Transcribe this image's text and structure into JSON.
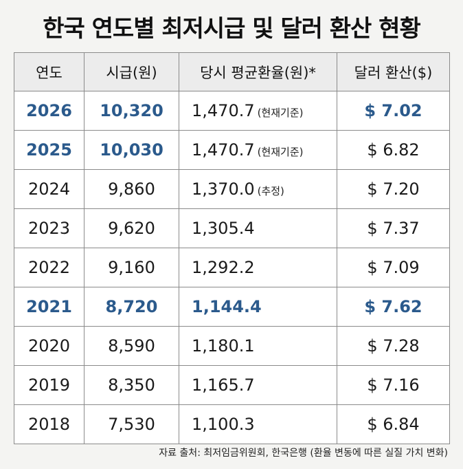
{
  "title": "한국 연도별 최저시급 및 달러 환산 현황",
  "table": {
    "headers": [
      "연도",
      "시급(원)",
      "당시 평균환율(원)*",
      "달러 환산($)"
    ],
    "rows": [
      {
        "year": "2026",
        "wage": "10,320",
        "rate": "1,470.7",
        "note": "(현재기준)",
        "usd": "$ 7.02"
      },
      {
        "year": "2025",
        "wage": "10,030",
        "rate": "1,470.7",
        "note": "(현재기준)",
        "usd": "$ 6.82"
      },
      {
        "year": "2024",
        "wage": "9,860",
        "rate": "1,370.0",
        "note": "(추정)",
        "usd": "$ 7.20"
      },
      {
        "year": "2023",
        "wage": "9,620",
        "rate": "1,305.4",
        "note": "",
        "usd": "$ 7.37"
      },
      {
        "year": "2022",
        "wage": "9,160",
        "rate": "1,292.2",
        "note": "",
        "usd": "$ 7.09"
      },
      {
        "year": "2021",
        "wage": "8,720",
        "rate": "1,144.4",
        "note": "",
        "usd": "$ 7.62"
      },
      {
        "year": "2020",
        "wage": "8,590",
        "rate": "1,180.1",
        "note": "",
        "usd": "$ 7.28"
      },
      {
        "year": "2019",
        "wage": "8,350",
        "rate": "1,165.7",
        "note": "",
        "usd": "$ 7.16"
      },
      {
        "year": "2018",
        "wage": "7,530",
        "rate": "1,100.3",
        "note": "",
        "usd": "$ 6.84"
      }
    ]
  },
  "source": "자료 출처: 최저임금위원회, 한국은행 (환율 변동에 따른 실질 가치 변화)",
  "colors": {
    "highlight": "#2b5a8c",
    "header_bg": "#ececec",
    "border": "#8a8a8a"
  }
}
